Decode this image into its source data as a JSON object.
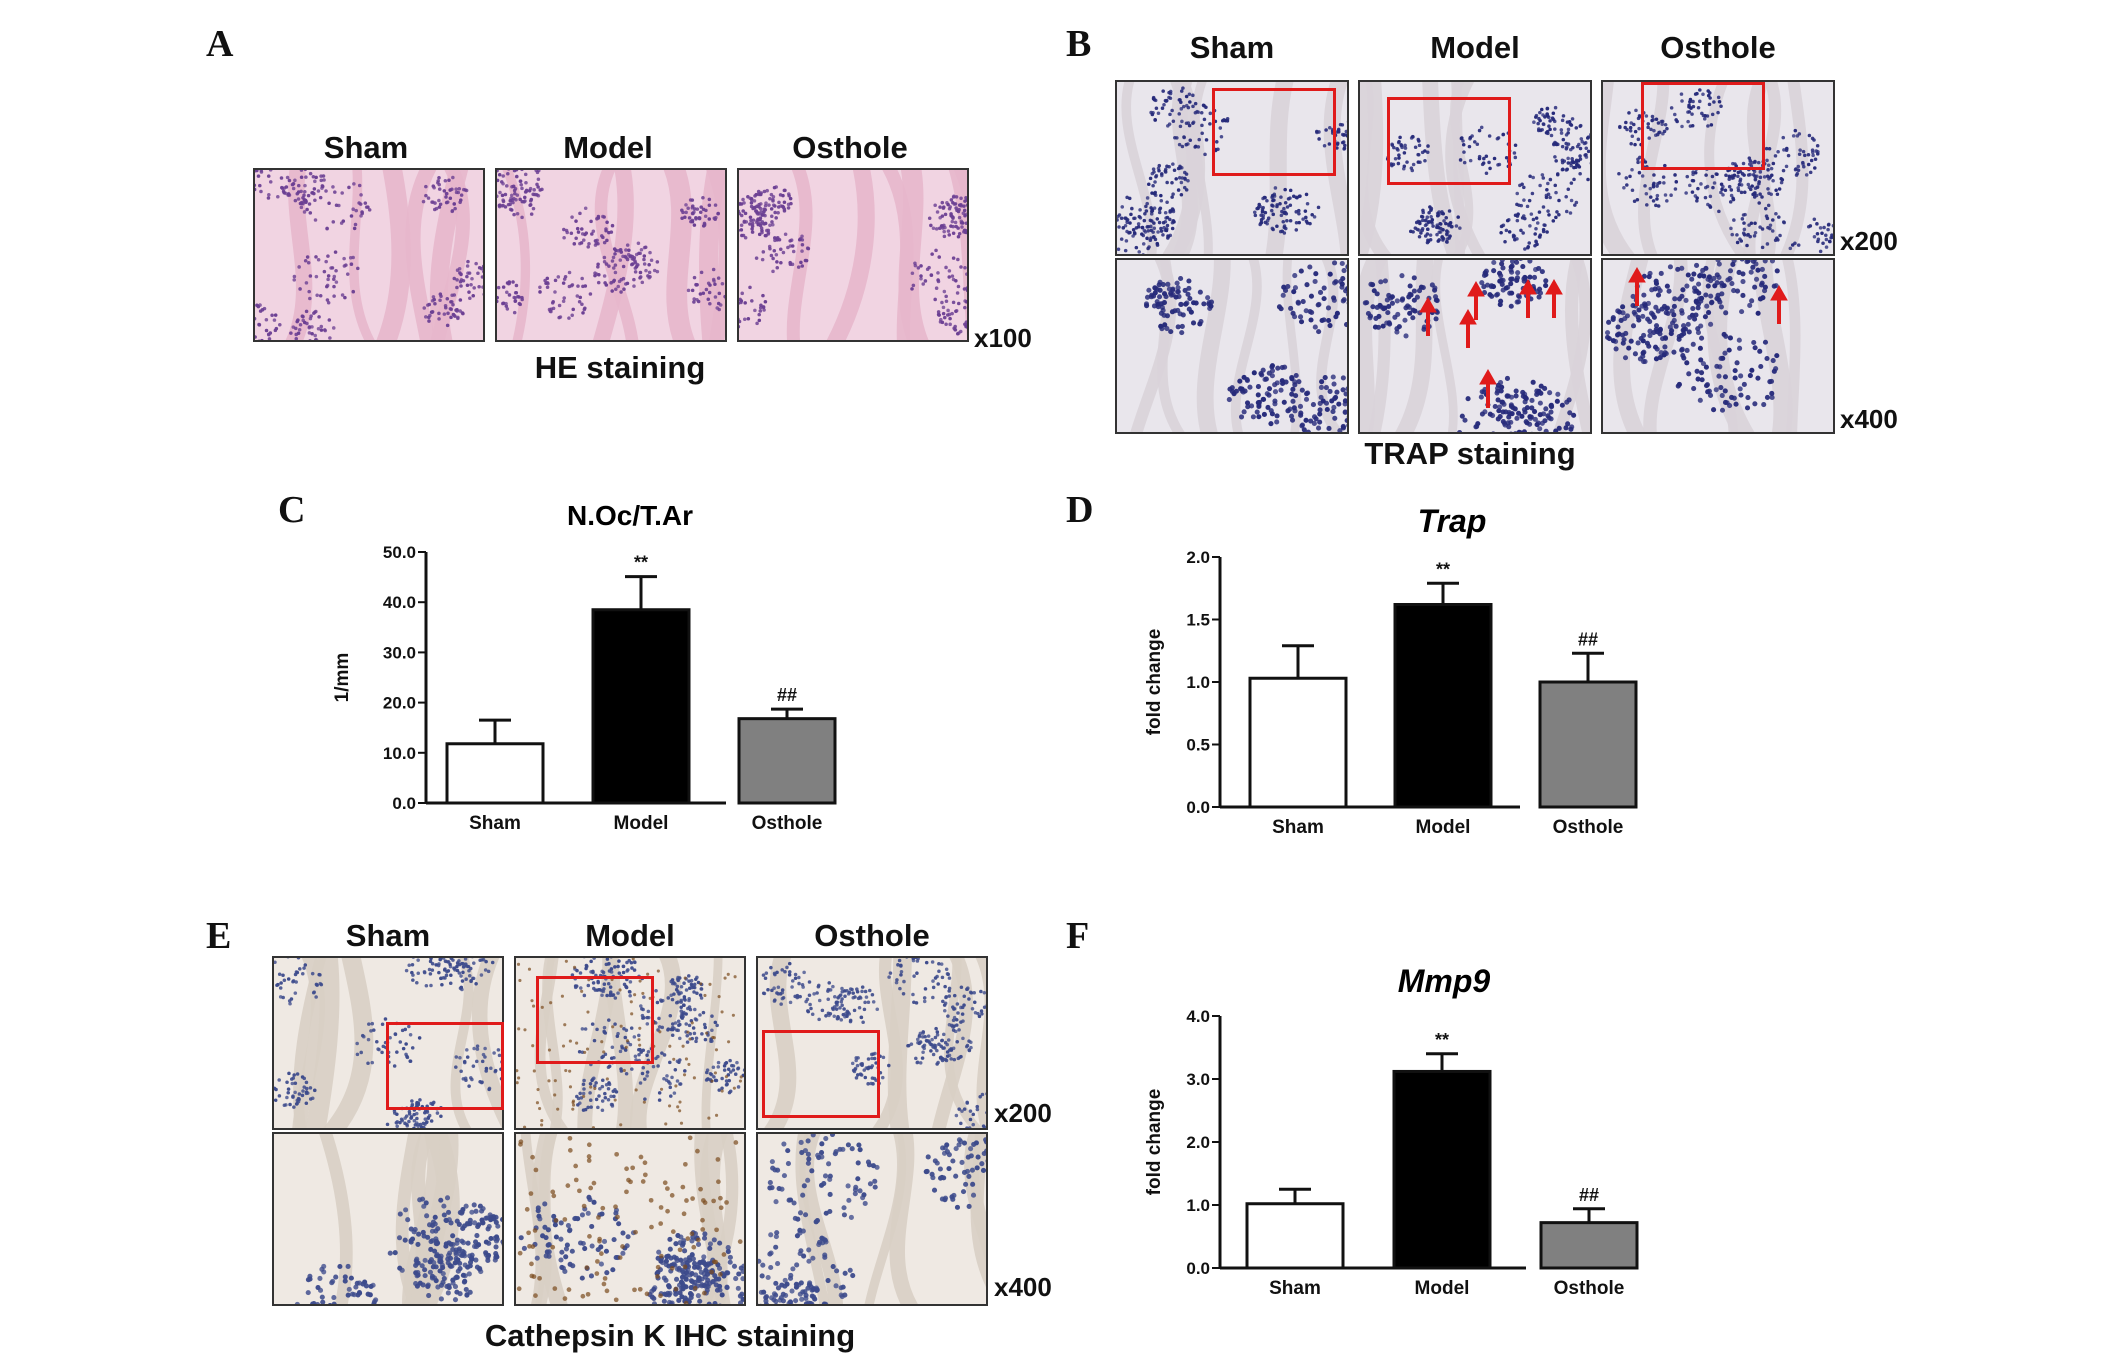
{
  "colors": {
    "he_bg": "#f1d4e2",
    "he_tissue": "#e7b7cc",
    "he_cells": "#6b3f93",
    "trap_bg": "#e9e6ec",
    "trap_cells": "#262a7a",
    "trap_tissue": "#d9d3d9",
    "ihc_bg": "#efe9e3",
    "ihc_cells": "#3d4b8c",
    "ihc_brown": "#7b4a1c",
    "roi": "#e01b1b",
    "bar_sham": "#ffffff",
    "bar_model": "#000000",
    "bar_osthole": "#808080"
  },
  "panels": {
    "A": {
      "letter": "A",
      "columns": [
        "Sham",
        "Model",
        "Osthole"
      ],
      "magnification": "x100",
      "caption": "HE staining"
    },
    "B": {
      "letter": "B",
      "columns": [
        "Sham",
        "Model",
        "Osthole"
      ],
      "magnifications": [
        "x200",
        "x400"
      ],
      "caption": "TRAP staining"
    },
    "C": {
      "letter": "C"
    },
    "D": {
      "letter": "D"
    },
    "E": {
      "letter": "E",
      "columns": [
        "Sham",
        "Model",
        "Osthole"
      ],
      "magnifications": [
        "x200",
        "x400"
      ],
      "caption": "Cathepsin K IHC staining"
    },
    "F": {
      "letter": "F"
    }
  },
  "chart_data": [
    {
      "id": "C",
      "type": "bar",
      "title": "N.Oc/T.Ar",
      "title_italic": false,
      "ylabel": "1/mm",
      "categories": [
        "Sham",
        "Model",
        "Osthole"
      ],
      "values": [
        11.8,
        38.5,
        16.8
      ],
      "errors": [
        4.7,
        6.6,
        1.9
      ],
      "significance": [
        "",
        "**",
        "##"
      ],
      "ylim": [
        0,
        50
      ],
      "yticks": [
        0,
        10,
        20,
        30,
        40,
        50
      ],
      "ytick_labels": [
        "0.0",
        "10.0",
        "20.0",
        "30.0",
        "40.0",
        "50.0"
      ]
    },
    {
      "id": "D",
      "type": "bar",
      "title": "Trap",
      "title_italic": true,
      "ylabel": "fold change",
      "categories": [
        "Sham",
        "Model",
        "Osthole"
      ],
      "values": [
        1.03,
        1.62,
        1.0
      ],
      "errors": [
        0.26,
        0.17,
        0.23
      ],
      "significance": [
        "",
        "**",
        "##"
      ],
      "ylim": [
        0,
        2
      ],
      "yticks": [
        0,
        0.5,
        1,
        1.5,
        2
      ],
      "ytick_labels": [
        "0.0",
        "0.5",
        "1.0",
        "1.5",
        "2.0"
      ]
    },
    {
      "id": "F",
      "type": "bar",
      "title": "Mmp9",
      "title_italic": true,
      "ylabel": "fold change",
      "categories": [
        "Sham",
        "Model",
        "Osthole"
      ],
      "values": [
        1.02,
        3.12,
        0.72
      ],
      "errors": [
        0.23,
        0.28,
        0.22
      ],
      "significance": [
        "",
        "**",
        "##"
      ],
      "ylim": [
        0,
        4
      ],
      "yticks": [
        0,
        1,
        2,
        3,
        4
      ],
      "ytick_labels": [
        "0.0",
        "1.0",
        "2.0",
        "3.0",
        "4.0"
      ]
    }
  ]
}
